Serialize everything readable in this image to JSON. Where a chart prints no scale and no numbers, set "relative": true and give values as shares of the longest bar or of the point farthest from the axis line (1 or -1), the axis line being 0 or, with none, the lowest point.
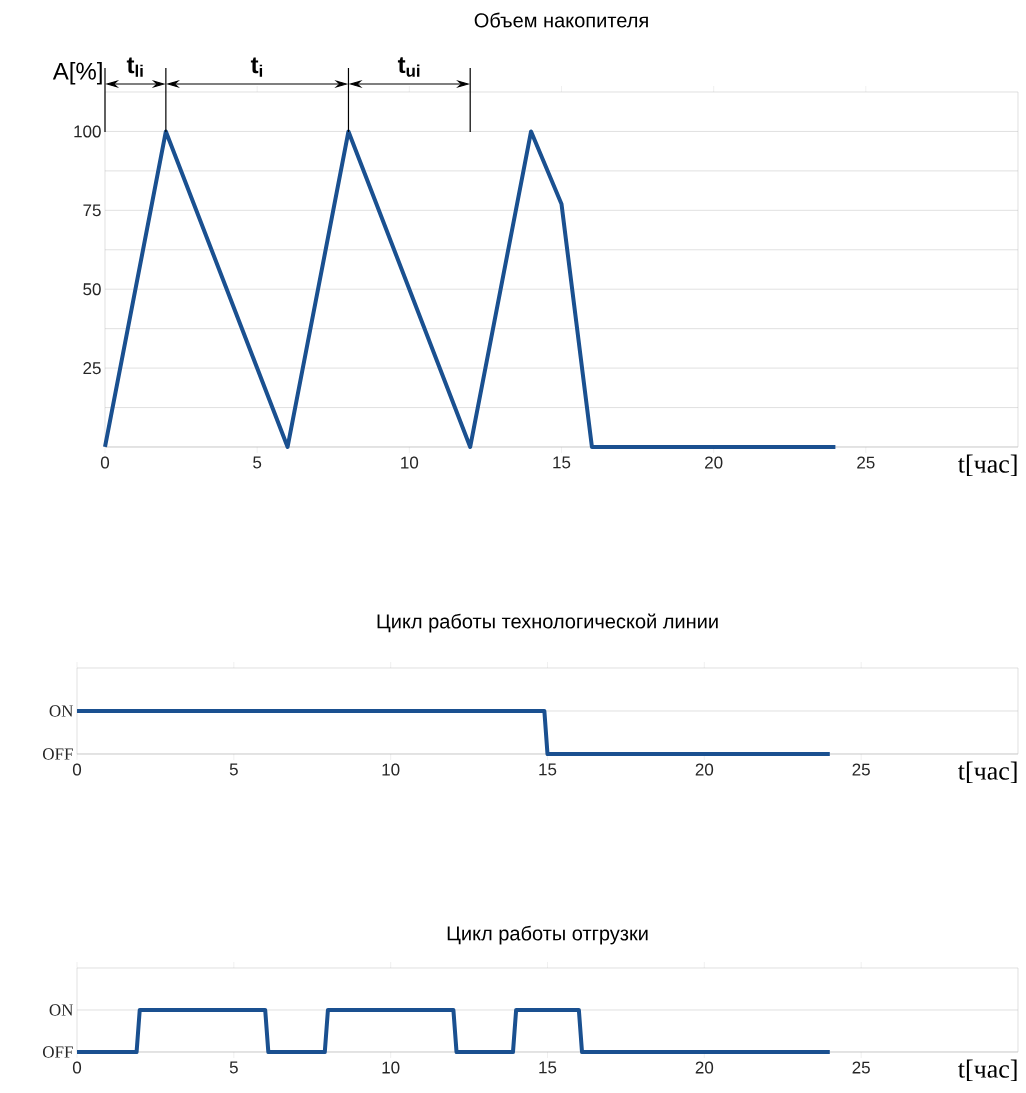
{
  "chart_data": [
    {
      "type": "line",
      "title": "Объем накопителя",
      "xlabel": "t[час]",
      "ylabel": "A[%]",
      "color": "#1a5090",
      "x": [
        0,
        2,
        6,
        8,
        12,
        14,
        15,
        16,
        24
      ],
      "values": [
        0,
        100,
        0,
        100,
        0,
        100,
        77,
        0,
        0
      ],
      "xlim": [
        0,
        30
      ],
      "xticks": [
        0,
        5,
        10,
        15,
        20,
        25
      ],
      "ylim": [
        0,
        112.5
      ],
      "yticks": [
        {
          "value": 0,
          "label": null
        },
        {
          "value": 12.5,
          "label": null
        },
        25,
        {
          "value": 37.5,
          "label": null
        },
        50,
        {
          "value": 62.5,
          "label": null
        },
        75,
        {
          "value": 87.5,
          "label": null
        },
        100
      ],
      "grid": "y",
      "ref_lines": [
        {
          "axis": "x",
          "value": 0,
          "color": "#000000"
        },
        {
          "axis": "x",
          "value": 2,
          "color": "#000000"
        },
        {
          "axis": "x",
          "value": 8,
          "color": "#000000"
        },
        {
          "axis": "x",
          "value": 12,
          "color": "#000000"
        }
      ],
      "annotations": [
        "t$_{li}$",
        "t$_{i}$",
        "t$_{ui}$"
      ]
    },
    {
      "type": "line",
      "title": "Цикл работы технологической линии",
      "xlabel": "t[час]",
      "color": "#1a5090",
      "x": [
        0,
        14.9,
        15,
        24
      ],
      "values": [
        1,
        1,
        0,
        0
      ],
      "xlim": [
        0,
        30
      ],
      "xticks": [
        0,
        5,
        10,
        15,
        20,
        25
      ],
      "relative": true,
      "y_categories": [
        "ON",
        "OFF"
      ]
    },
    {
      "type": "line",
      "title": "Цикл работы отгрузки",
      "xlabel": "t[час]",
      "color": "#1a5090",
      "x": [
        0,
        1.9,
        2,
        6,
        6.1,
        7.9,
        8,
        12,
        12.1,
        13.9,
        14,
        16,
        16.1,
        24
      ],
      "values": [
        0,
        0,
        1,
        1,
        0,
        0,
        1,
        1,
        0,
        0,
        1,
        1,
        0,
        0
      ],
      "xlim": [
        0,
        30
      ],
      "xticks": [
        0,
        5,
        10,
        15,
        20,
        25
      ],
      "relative": true,
      "y_categories": [
        "ON",
        "OFF"
      ]
    }
  ]
}
